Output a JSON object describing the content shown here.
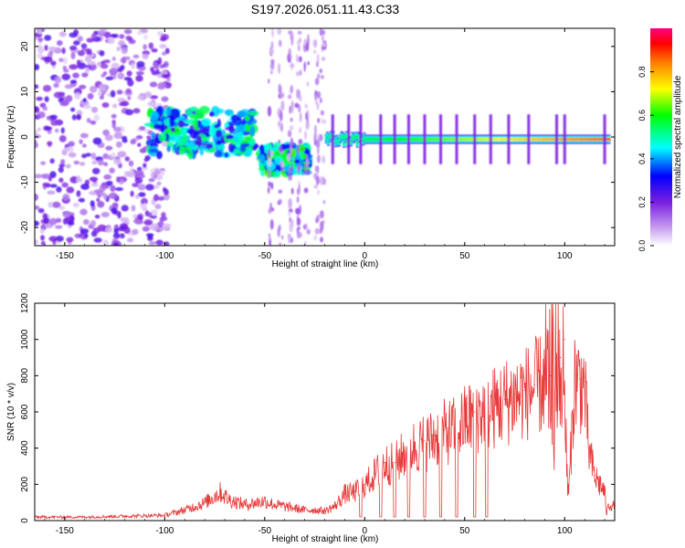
{
  "title": "S197.2026.051.11.43.C33",
  "chart_data": [
    {
      "type": "heatmap",
      "xlabel": "Height of straight line (km)",
      "ylabel": "Frequency (Hz)",
      "xlim": [
        -165,
        125
      ],
      "ylim": [
        -24,
        24
      ],
      "xticks": [
        -150,
        -100,
        -50,
        0,
        50,
        100
      ],
      "yticks": [
        -20,
        -10,
        0,
        10,
        20
      ],
      "colorbar": {
        "label": "Normalized spectral amplitude",
        "range": [
          0.0,
          1.0
        ],
        "ticks": [
          0.0,
          0.2,
          0.4,
          0.6,
          0.8
        ],
        "colors": [
          "#ffffff",
          "#8a2be2",
          "#0000ff",
          "#00ffff",
          "#00ff00",
          "#ffff00",
          "#ff8000",
          "#ff0000",
          "#ff0080"
        ]
      },
      "features": [
        {
          "x_range": [
            -165,
            -98
          ],
          "freq_range": [
            -24,
            24
          ],
          "amplitude": 0.1,
          "pattern": "scattered noise"
        },
        {
          "x_range": [
            -108,
            -55
          ],
          "freq_range": [
            -4,
            6
          ],
          "amplitude": 0.35,
          "pattern": "clustered blobs"
        },
        {
          "x_range": [
            -52,
            -28
          ],
          "freq_range": [
            -8,
            -2
          ],
          "amplitude": 0.4,
          "pattern": "clustered blobs"
        },
        {
          "x_range": [
            -48,
            -20
          ],
          "freq_range": [
            -24,
            24
          ],
          "amplitude": 0.08,
          "pattern": "vertical streaks"
        },
        {
          "x_range": [
            -20,
            122
          ],
          "freq_range": [
            -2,
            1
          ],
          "amplitude": 0.85,
          "pattern": "horizontal band near 0 Hz"
        }
      ]
    },
    {
      "type": "line",
      "xlabel": "Height of straight line (km)",
      "ylabel": "SNR (10 * v/v)",
      "xlim": [
        -165,
        125
      ],
      "ylim": [
        0,
        1200
      ],
      "xticks": [
        -150,
        -100,
        -50,
        0,
        50,
        100
      ],
      "yticks": [
        0,
        200,
        400,
        600,
        800,
        1000,
        1200
      ],
      "color": "#e83a3a",
      "x": [
        -165,
        -140,
        -120,
        -100,
        -90,
        -80,
        -75,
        -72,
        -68,
        -60,
        -55,
        -50,
        -45,
        -40,
        -35,
        -30,
        -25,
        -20,
        -15,
        -10,
        -5,
        0,
        5,
        10,
        15,
        20,
        25,
        30,
        35,
        40,
        45,
        50,
        55,
        60,
        65,
        70,
        75,
        80,
        85,
        90,
        93,
        96,
        98,
        100,
        101,
        102,
        105,
        108,
        110,
        112,
        115,
        118,
        120,
        121,
        122,
        125
      ],
      "values": [
        20,
        20,
        25,
        30,
        60,
        100,
        140,
        160,
        120,
        90,
        100,
        110,
        90,
        80,
        70,
        60,
        60,
        55,
        80,
        150,
        160,
        200,
        260,
        320,
        320,
        380,
        420,
        440,
        470,
        500,
        510,
        560,
        600,
        620,
        640,
        670,
        700,
        720,
        750,
        780,
        800,
        850,
        900,
        1000,
        300,
        150,
        800,
        780,
        750,
        400,
        250,
        200,
        160,
        40,
        90,
        80
      ]
    }
  ]
}
